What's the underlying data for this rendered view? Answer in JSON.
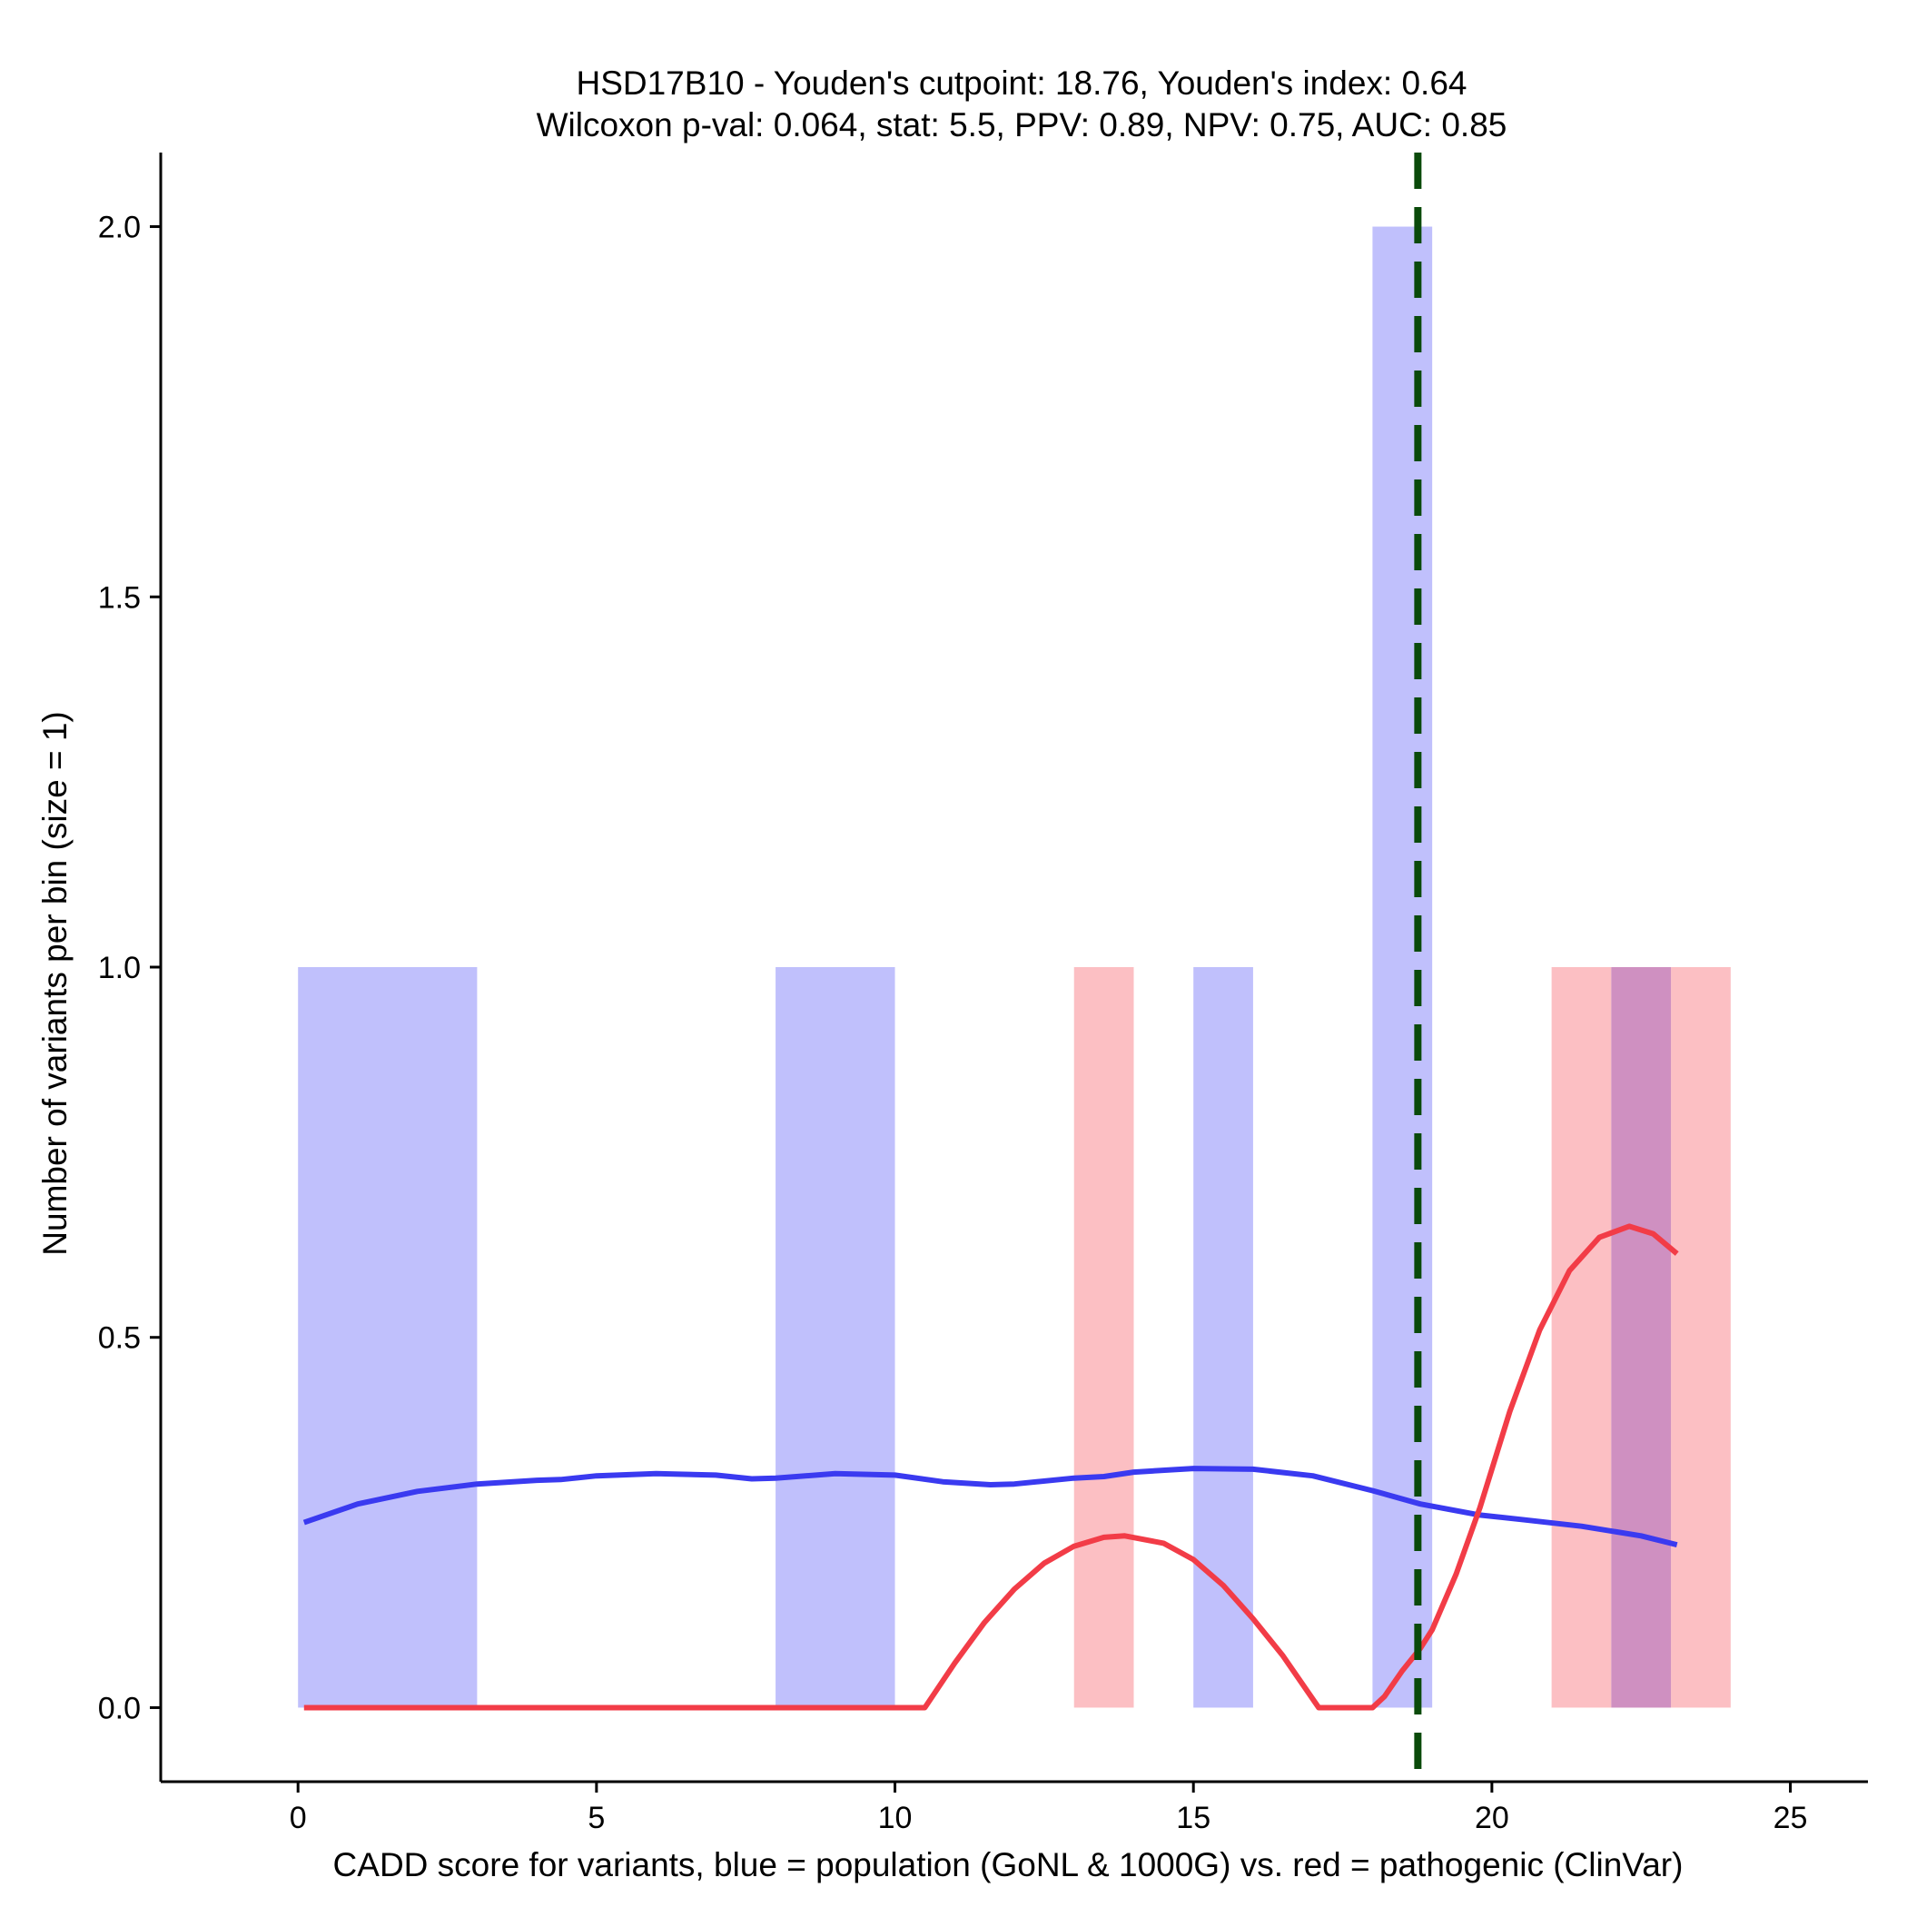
{
  "chart_data": {
    "type": "bar",
    "title_line1": "HSD17B10 - Youden's cutpoint: 18.76, Youden's index: 0.64",
    "title_line2": "Wilcoxon p-val: 0.064, stat: 5.5, PPV: 0.89, NPV: 0.75, AUC: 0.85",
    "xlabel": "CADD score for variants, blue = population (GoNL & 1000G) vs. red = pathogenic (ClinVar)",
    "ylabel": "Number of variants per bin (size = 1)",
    "xlim": [
      -2.3,
      26.3
    ],
    "ylim": [
      -0.1,
      2.1
    ],
    "x_ticks": [
      0,
      5,
      10,
      15,
      20,
      25
    ],
    "x_tick_labels": [
      "0",
      "5",
      "10",
      "15",
      "20",
      "25"
    ],
    "y_ticks": [
      0.0,
      0.5,
      1.0,
      1.5,
      2.0
    ],
    "y_tick_labels": [
      "0.0",
      "0.5",
      "1.0",
      "1.5",
      "2.0"
    ],
    "cutpoint": 18.76,
    "colors": {
      "population_bar": "#c0c0fc",
      "pathogenic_bar": "#fcbfc3",
      "overlap_bar": "#cf90c1",
      "population_line": "#3a3af0",
      "pathogenic_line": "#f23c47",
      "cutpoint_line": "#0a4a0a"
    },
    "series": [
      {
        "name": "population",
        "bins": [
          {
            "start": 0,
            "end": 3,
            "count": 1
          },
          {
            "start": 8,
            "end": 10,
            "count": 1
          },
          {
            "start": 15,
            "end": 16,
            "count": 1
          },
          {
            "start": 18,
            "end": 19,
            "count": 2
          },
          {
            "start": 22,
            "end": 23,
            "count": 1
          }
        ],
        "density": {
          "x": [
            0.1,
            1,
            2,
            3,
            4,
            4.4,
            5,
            6,
            7,
            7.6,
            8,
            9,
            10,
            10.8,
            11.6,
            12,
            13,
            13.5,
            14,
            15,
            16,
            17,
            18,
            18.8,
            19.8,
            20.5,
            21.5,
            22.5,
            23.1
          ],
          "y": [
            0.25,
            0.275,
            0.292,
            0.302,
            0.307,
            0.308,
            0.313,
            0.316,
            0.314,
            0.309,
            0.31,
            0.316,
            0.314,
            0.305,
            0.301,
            0.302,
            0.31,
            0.312,
            0.318,
            0.323,
            0.322,
            0.313,
            0.293,
            0.275,
            0.26,
            0.254,
            0.245,
            0.232,
            0.22
          ]
        }
      },
      {
        "name": "pathogenic",
        "bins": [
          {
            "start": 13,
            "end": 14,
            "count": 1
          },
          {
            "start": 21,
            "end": 22,
            "count": 1
          },
          {
            "start": 22,
            "end": 23,
            "count": 1
          },
          {
            "start": 23,
            "end": 24,
            "count": 1
          }
        ],
        "density": {
          "x": [
            0.1,
            2,
            4,
            6,
            8,
            10,
            10.5,
            11,
            11.5,
            12,
            12.5,
            13,
            13.5,
            13.85,
            14.5,
            15,
            15.5,
            16,
            16.5,
            17.1,
            18,
            18.2,
            18.5,
            18.8,
            19,
            19.4,
            19.8,
            20.3,
            20.8,
            21.3,
            21.8,
            22.3,
            22.7,
            23.1
          ],
          "y": [
            0,
            0,
            0,
            0,
            0,
            0,
            0,
            0.06,
            0.115,
            0.16,
            0.195,
            0.218,
            0.23,
            0.232,
            0.222,
            0.2,
            0.165,
            0.12,
            0.07,
            0,
            0,
            0.015,
            0.05,
            0.08,
            0.105,
            0.18,
            0.27,
            0.4,
            0.51,
            0.59,
            0.635,
            0.65,
            0.64,
            0.613
          ]
        }
      }
    ]
  }
}
